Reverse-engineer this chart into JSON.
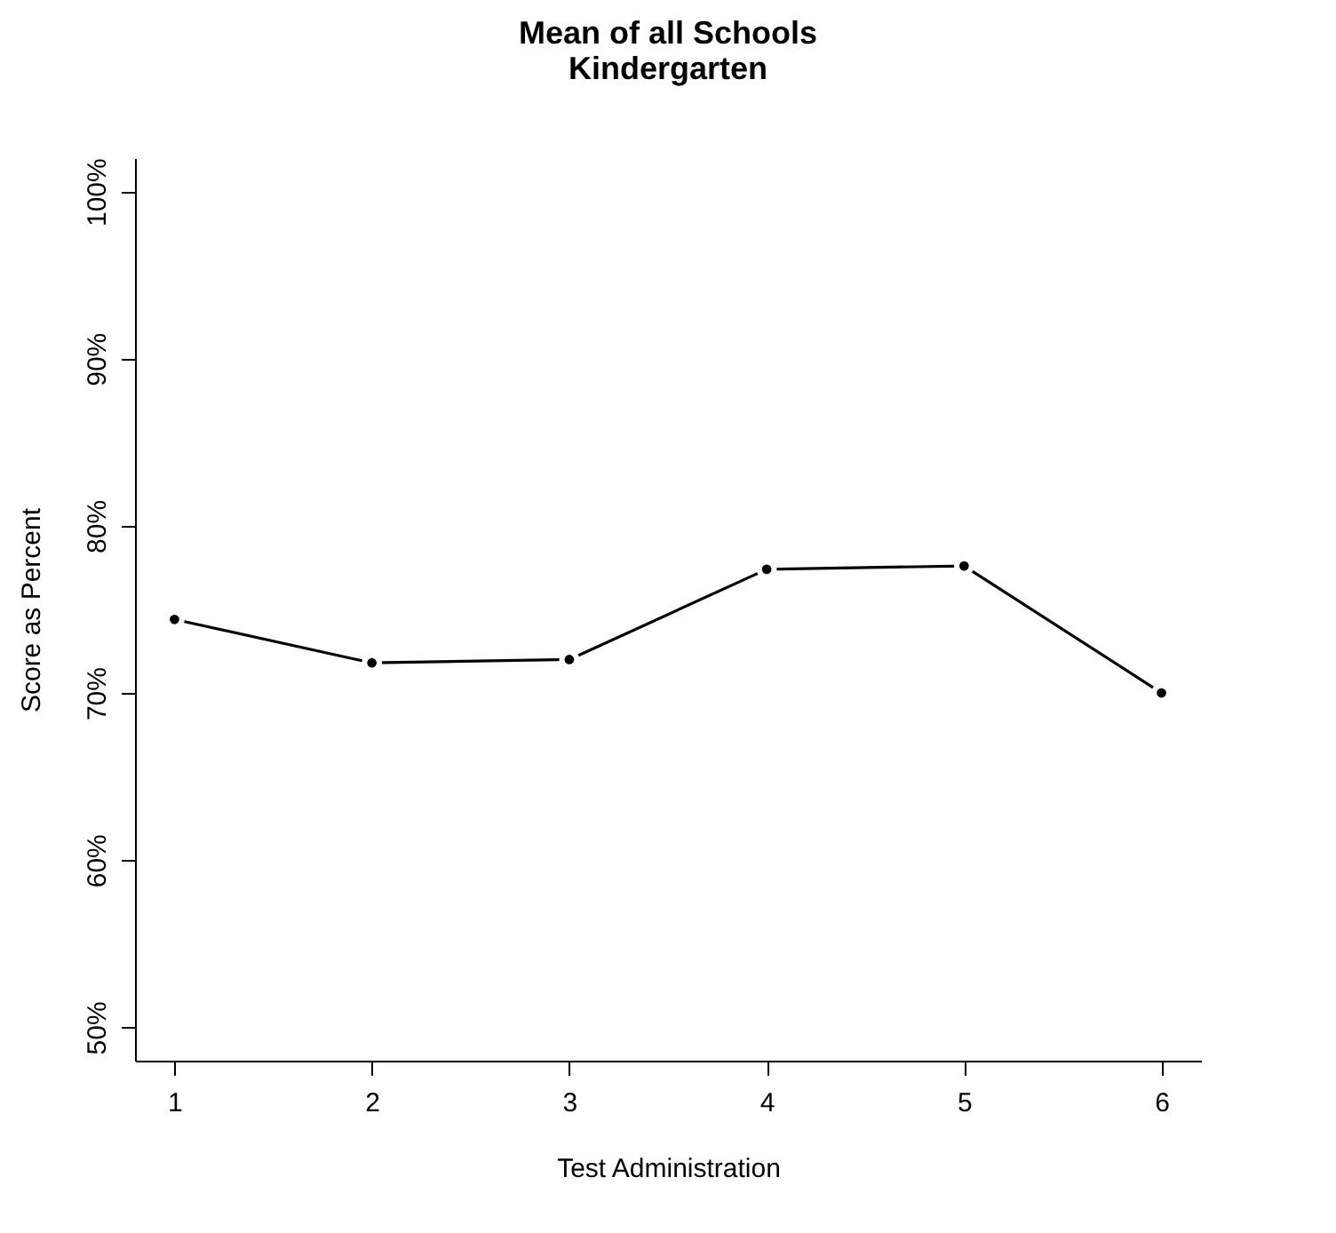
{
  "chart_data": {
    "type": "line",
    "title": "Mean of all Schools",
    "subtitle": "Kindergarten",
    "xlabel": "Test Administration",
    "ylabel": "Score as Percent",
    "x": [
      1,
      2,
      3,
      4,
      5,
      6
    ],
    "series": [
      {
        "color": "#000000",
        "values": [
          74.4,
          71.8,
          72.0,
          77.4,
          77.6,
          70.0
        ]
      }
    ],
    "xlim": [
      0.8,
      6.2
    ],
    "xticks": [
      1,
      2,
      3,
      4,
      5,
      6
    ],
    "ylim": [
      48,
      102
    ],
    "yticks": [
      {
        "value": 50,
        "label": "50%"
      },
      {
        "value": 60,
        "label": "60%"
      },
      {
        "value": 70,
        "label": "70%"
      },
      {
        "value": 80,
        "label": "80%"
      },
      {
        "value": 90,
        "label": "90%"
      },
      {
        "value": 100,
        "label": "100%"
      }
    ],
    "grid": false,
    "legend": false,
    "marker": "circle",
    "line_style": "solid"
  }
}
